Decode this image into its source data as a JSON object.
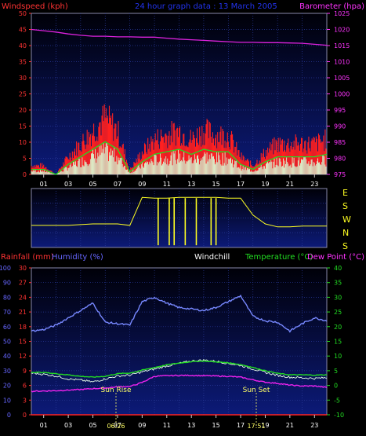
{
  "top_chart": {
    "title": "24 hour graph data : 13 March 2005",
    "left_axis_label": "Windspeed (kph)",
    "right_axis_label": "Barometer (hpa)",
    "left_ticks": [
      "0",
      "5",
      "10",
      "15",
      "20",
      "25",
      "30",
      "35",
      "40",
      "45",
      "50"
    ],
    "right_ticks": [
      "975",
      "980",
      "985",
      "990",
      "995",
      "1000",
      "1005",
      "1010",
      "1015",
      "1020",
      "1025"
    ],
    "colors": {
      "wind": "#ff2020",
      "gust_avg": "#22dd22",
      "avg": "#d8ffd8",
      "barometer": "#dd22dd",
      "left_axis": "#ff3333",
      "right_axis": "#ff33ff",
      "title": "#2233ee"
    }
  },
  "direction_chart": {
    "compass_labels": [
      "E",
      "S",
      "W",
      "N",
      "S"
    ],
    "color": "#ffff22"
  },
  "bottom_chart": {
    "labels": {
      "rainfall": "Rainfall (mm)",
      "humidity": "Humidity (%)",
      "windchill": "Windchill",
      "temperature": "Temperature (°C)",
      "dewpoint": "Dew Point (°C)"
    },
    "humidity_ticks": [
      "0",
      "10",
      "20",
      "30",
      "40",
      "50",
      "60",
      "70",
      "80",
      "90",
      "100"
    ],
    "rain_ticks": [
      "0",
      "3",
      "6",
      "9",
      "12",
      "15",
      "18",
      "21",
      "24",
      "27",
      "30"
    ],
    "temp_ticks": [
      "-10",
      "-5",
      "0",
      "5",
      "10",
      "15",
      "20",
      "25",
      "30",
      "35",
      "40"
    ],
    "sunrise_label": "Sun Rise",
    "sunset_label": "Sun Set",
    "sunrise_time": "06:26",
    "sunset_time": "17:51",
    "colors": {
      "humidity": "#7788ff",
      "temperature": "#22dd22",
      "windchill": "#e8ffe8",
      "dewpoint": "#ee22ee",
      "rainfall": "#ff2222",
      "rain_axis": "#ff3333",
      "humidity_axis": "#6666ff",
      "temp_axis": "#22dd22"
    }
  },
  "x_ticks": [
    "01",
    "03",
    "05",
    "07",
    "09",
    "11",
    "13",
    "15",
    "17",
    "19",
    "21",
    "23"
  ],
  "chart_data": [
    {
      "type": "line",
      "title": "24 hour graph data : 13 March 2005",
      "xlabel": "",
      "ylabel": "Windspeed (kph)",
      "ylim": [
        0,
        50
      ],
      "y2label": "Barometer (hpa)",
      "y2lim": [
        975,
        1025
      ],
      "x": [
        0,
        1,
        2,
        3,
        4,
        5,
        6,
        7,
        8,
        9,
        10,
        11,
        12,
        13,
        14,
        15,
        16,
        17,
        18,
        19,
        20,
        21,
        22,
        23,
        24
      ],
      "series": [
        {
          "name": "Windspeed (kph)",
          "axis": "left",
          "values": [
            2,
            2,
            0,
            4,
            7,
            10,
            13,
            10,
            1,
            5,
            8,
            9,
            10,
            8,
            10,
            9,
            9,
            4,
            2,
            5,
            7,
            7,
            7,
            7,
            8
          ]
        },
        {
          "name": "Barometer (hpa)",
          "axis": "right",
          "values": [
            1020,
            1019.6,
            1019.2,
            1018.6,
            1018.2,
            1017.9,
            1017.9,
            1017.7,
            1017.7,
            1017.6,
            1017.6,
            1017.3,
            1017,
            1016.8,
            1016.6,
            1016.4,
            1016.2,
            1016,
            1016,
            1015.9,
            1015.9,
            1015.8,
            1015.7,
            1015.4,
            1015.1
          ]
        }
      ]
    },
    {
      "type": "line",
      "title": "",
      "ylabel": "",
      "compass": [
        "E",
        "S",
        "W",
        "N",
        "S"
      ],
      "x": [
        0,
        1,
        2,
        3,
        4,
        5,
        6,
        7,
        8,
        9,
        10,
        11,
        12,
        13,
        14,
        15,
        16,
        17,
        18,
        19,
        20,
        21,
        22,
        23,
        24
      ],
      "series": [
        {
          "name": "",
          "values": [
            1.5,
            1.5,
            1.5,
            1.5,
            1.55,
            1.6,
            1.6,
            1.6,
            1.5,
            3.4,
            3.35,
            3.35,
            3.4,
            3.4,
            3.4,
            3.4,
            3.35,
            3.35,
            2.2,
            1.6,
            1.4,
            1.4,
            1.45,
            1.45,
            1.45
          ]
        }
      ]
    },
    {
      "type": "line",
      "title": "",
      "ylabel": "Humidity (%)",
      "ylim": [
        0,
        100
      ],
      "y2label": "Temperature (°C)",
      "y2lim": [
        -10,
        40
      ],
      "rain_lim": [
        0,
        30
      ],
      "x": [
        0,
        1,
        2,
        3,
        4,
        5,
        6,
        7,
        8,
        9,
        10,
        11,
        12,
        13,
        14,
        15,
        16,
        17,
        18,
        19,
        20,
        21,
        22,
        23,
        24
      ],
      "series": [
        {
          "name": "Humidity (%)",
          "axis": "left",
          "values": [
            57,
            58,
            61,
            66,
            71,
            76,
            63,
            62,
            61,
            77,
            80,
            76,
            73,
            72,
            71,
            73,
            77,
            81,
            67,
            64,
            63,
            57,
            62,
            66,
            64
          ]
        },
        {
          "name": "Temperature (°C)",
          "axis": "right",
          "values": [
            4.5,
            4.4,
            4,
            3.6,
            3.1,
            2.8,
            3.1,
            4,
            4.2,
            5.2,
            6.1,
            7,
            7.6,
            8.1,
            8.3,
            8,
            7.7,
            7.1,
            6.1,
            5,
            4.1,
            3.6,
            3.6,
            3.5,
            3.6
          ]
        },
        {
          "name": "Windchill",
          "axis": "right",
          "values": [
            4.2,
            3.8,
            3.2,
            2.2,
            1.8,
            1.2,
            2.2,
            3.2,
            3.5,
            4.6,
            5.6,
            6.6,
            7.5,
            8.3,
            8.6,
            8.2,
            7.5,
            6.8,
            5.6,
            4.4,
            3.4,
            2.8,
            2.6,
            2.4,
            2.6
          ]
        },
        {
          "name": "Dew Point (°C)",
          "axis": "right",
          "values": [
            -2,
            -1.9,
            -1.8,
            -1.6,
            -1.4,
            -1.1,
            -0.9,
            -0.5,
            -0.4,
            1,
            3.1,
            3.3,
            3.4,
            3.4,
            3.3,
            3.2,
            3.1,
            2.8,
            1.9,
            1.1,
            0.7,
            0.1,
            -0.2,
            -0.2,
            -0.7
          ]
        },
        {
          "name": "Rainfall (mm)",
          "axis": "rain",
          "values": [
            0,
            0,
            0,
            0,
            0,
            0,
            0,
            0,
            0,
            0,
            0,
            0,
            0,
            0,
            0,
            0,
            0,
            0,
            0,
            0,
            0,
            0,
            0,
            0,
            0
          ]
        }
      ]
    }
  ]
}
